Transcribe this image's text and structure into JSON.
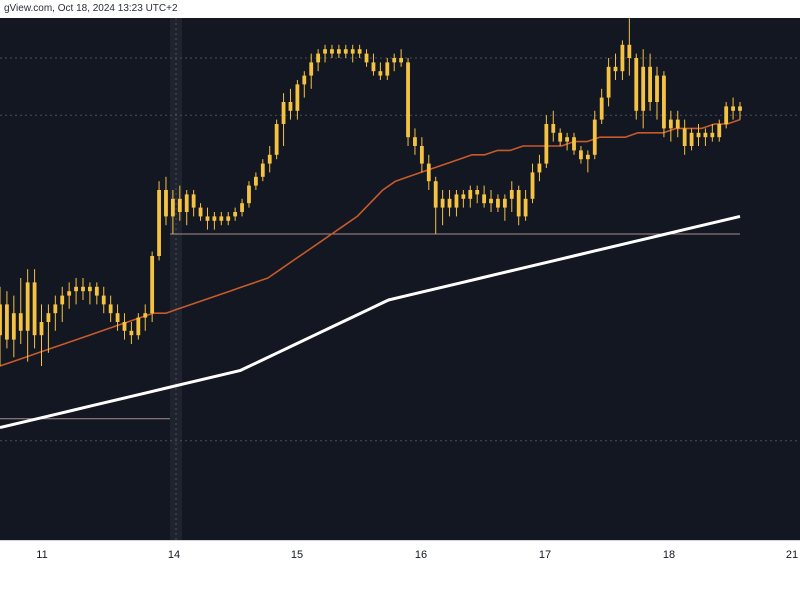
{
  "header": {
    "text": "gView.com, Oct 18, 2024 13:23 UTC+2"
  },
  "colors": {
    "background": "#131722",
    "candle": "#f5c242",
    "ma_fast": "#c75a2a",
    "ma_slow": "#ffffff",
    "level_line": "#a88d8d",
    "dotted_grid": "#4a4f5c",
    "cursor_band": "#2a2e39"
  },
  "chart_data": {
    "type": "candlestick",
    "x_tick_labels": [
      "11",
      "14",
      "15",
      "16",
      "17",
      "18",
      "21"
    ],
    "y_range": [
      0,
      100
    ],
    "candles": [
      {
        "o": 37,
        "h": 48,
        "l": 30,
        "c": 44
      },
      {
        "o": 44,
        "h": 47,
        "l": 34,
        "c": 36
      },
      {
        "o": 36,
        "h": 46,
        "l": 32,
        "c": 42
      },
      {
        "o": 42,
        "h": 50,
        "l": 35,
        "c": 38
      },
      {
        "o": 38,
        "h": 52,
        "l": 31,
        "c": 49
      },
      {
        "o": 49,
        "h": 52,
        "l": 34,
        "c": 37
      },
      {
        "o": 37,
        "h": 44,
        "l": 30,
        "c": 40
      },
      {
        "o": 40,
        "h": 44,
        "l": 33,
        "c": 42
      },
      {
        "o": 42,
        "h": 46,
        "l": 38,
        "c": 44
      },
      {
        "o": 44,
        "h": 48,
        "l": 40,
        "c": 46
      },
      {
        "o": 46,
        "h": 49,
        "l": 43,
        "c": 47
      },
      {
        "o": 47,
        "h": 50,
        "l": 44,
        "c": 48
      },
      {
        "o": 48,
        "h": 50,
        "l": 45,
        "c": 47
      },
      {
        "o": 47,
        "h": 49,
        "l": 44,
        "c": 48
      },
      {
        "o": 48,
        "h": 49,
        "l": 44,
        "c": 46
      },
      {
        "o": 46,
        "h": 48,
        "l": 42,
        "c": 44
      },
      {
        "o": 44,
        "h": 46,
        "l": 40,
        "c": 42
      },
      {
        "o": 42,
        "h": 44,
        "l": 38,
        "c": 40
      },
      {
        "o": 40,
        "h": 42,
        "l": 36,
        "c": 38
      },
      {
        "o": 38,
        "h": 40,
        "l": 35,
        "c": 37
      },
      {
        "o": 37,
        "h": 42,
        "l": 36,
        "c": 41
      },
      {
        "o": 41,
        "h": 44,
        "l": 38,
        "c": 42
      },
      {
        "o": 42,
        "h": 56,
        "l": 40,
        "c": 55
      },
      {
        "o": 55,
        "h": 72,
        "l": 54,
        "c": 70
      },
      {
        "o": 70,
        "h": 73,
        "l": 62,
        "c": 64
      },
      {
        "o": 64,
        "h": 70,
        "l": 60,
        "c": 68
      },
      {
        "o": 68,
        "h": 71,
        "l": 63,
        "c": 65
      },
      {
        "o": 65,
        "h": 70,
        "l": 62,
        "c": 69
      },
      {
        "o": 69,
        "h": 70,
        "l": 64,
        "c": 66
      },
      {
        "o": 66,
        "h": 67,
        "l": 63,
        "c": 64
      },
      {
        "o": 64,
        "h": 66,
        "l": 61,
        "c": 63
      },
      {
        "o": 63,
        "h": 65,
        "l": 61,
        "c": 64
      },
      {
        "o": 64,
        "h": 65,
        "l": 62,
        "c": 63
      },
      {
        "o": 63,
        "h": 65,
        "l": 62,
        "c": 64
      },
      {
        "o": 64,
        "h": 66,
        "l": 63,
        "c": 65
      },
      {
        "o": 65,
        "h": 68,
        "l": 64,
        "c": 67
      },
      {
        "o": 67,
        "h": 72,
        "l": 66,
        "c": 71
      },
      {
        "o": 71,
        "h": 74,
        "l": 70,
        "c": 73
      },
      {
        "o": 73,
        "h": 77,
        "l": 72,
        "c": 76
      },
      {
        "o": 76,
        "h": 80,
        "l": 74,
        "c": 78
      },
      {
        "o": 78,
        "h": 86,
        "l": 77,
        "c": 85
      },
      {
        "o": 85,
        "h": 92,
        "l": 80,
        "c": 90
      },
      {
        "o": 90,
        "h": 93,
        "l": 86,
        "c": 88
      },
      {
        "o": 88,
        "h": 95,
        "l": 86,
        "c": 94
      },
      {
        "o": 94,
        "h": 97,
        "l": 91,
        "c": 96
      },
      {
        "o": 96,
        "h": 101,
        "l": 93,
        "c": 99
      },
      {
        "o": 99,
        "h": 102,
        "l": 97,
        "c": 101
      },
      {
        "o": 101,
        "h": 103,
        "l": 99,
        "c": 102
      },
      {
        "o": 102,
        "h": 103,
        "l": 100,
        "c": 101
      },
      {
        "o": 101,
        "h": 103,
        "l": 100,
        "c": 102
      },
      {
        "o": 102,
        "h": 103,
        "l": 100,
        "c": 101
      },
      {
        "o": 101,
        "h": 103,
        "l": 99,
        "c": 102
      },
      {
        "o": 102,
        "h": 103,
        "l": 100,
        "c": 101
      },
      {
        "o": 101,
        "h": 102,
        "l": 98,
        "c": 99
      },
      {
        "o": 99,
        "h": 101,
        "l": 96,
        "c": 97
      },
      {
        "o": 97,
        "h": 99,
        "l": 95,
        "c": 96
      },
      {
        "o": 96,
        "h": 100,
        "l": 95,
        "c": 99
      },
      {
        "o": 99,
        "h": 101,
        "l": 97,
        "c": 100
      },
      {
        "o": 100,
        "h": 102,
        "l": 98,
        "c": 99
      },
      {
        "o": 99,
        "h": 100,
        "l": 80,
        "c": 82
      },
      {
        "o": 82,
        "h": 84,
        "l": 78,
        "c": 80
      },
      {
        "o": 80,
        "h": 82,
        "l": 74,
        "c": 76
      },
      {
        "o": 76,
        "h": 78,
        "l": 70,
        "c": 72
      },
      {
        "o": 72,
        "h": 73,
        "l": 60,
        "c": 66
      },
      {
        "o": 66,
        "h": 70,
        "l": 62,
        "c": 68
      },
      {
        "o": 68,
        "h": 70,
        "l": 64,
        "c": 66
      },
      {
        "o": 66,
        "h": 70,
        "l": 64,
        "c": 69
      },
      {
        "o": 69,
        "h": 70,
        "l": 66,
        "c": 68
      },
      {
        "o": 68,
        "h": 71,
        "l": 66,
        "c": 70
      },
      {
        "o": 70,
        "h": 71,
        "l": 67,
        "c": 69
      },
      {
        "o": 69,
        "h": 71,
        "l": 66,
        "c": 67
      },
      {
        "o": 67,
        "h": 70,
        "l": 65,
        "c": 68
      },
      {
        "o": 68,
        "h": 69,
        "l": 65,
        "c": 66
      },
      {
        "o": 66,
        "h": 69,
        "l": 63,
        "c": 68
      },
      {
        "o": 68,
        "h": 72,
        "l": 65,
        "c": 70
      },
      {
        "o": 70,
        "h": 71,
        "l": 62,
        "c": 64
      },
      {
        "o": 64,
        "h": 70,
        "l": 63,
        "c": 68
      },
      {
        "o": 68,
        "h": 76,
        "l": 67,
        "c": 74
      },
      {
        "o": 74,
        "h": 78,
        "l": 72,
        "c": 76
      },
      {
        "o": 76,
        "h": 87,
        "l": 75,
        "c": 85
      },
      {
        "o": 85,
        "h": 88,
        "l": 81,
        "c": 83
      },
      {
        "o": 83,
        "h": 84,
        "l": 80,
        "c": 81
      },
      {
        "o": 81,
        "h": 83,
        "l": 79,
        "c": 82
      },
      {
        "o": 82,
        "h": 83,
        "l": 78,
        "c": 79
      },
      {
        "o": 79,
        "h": 80,
        "l": 76,
        "c": 77
      },
      {
        "o": 77,
        "h": 79,
        "l": 74,
        "c": 78
      },
      {
        "o": 78,
        "h": 88,
        "l": 77,
        "c": 86
      },
      {
        "o": 86,
        "h": 93,
        "l": 85,
        "c": 91
      },
      {
        "o": 91,
        "h": 100,
        "l": 89,
        "c": 98
      },
      {
        "o": 98,
        "h": 101,
        "l": 95,
        "c": 97
      },
      {
        "o": 97,
        "h": 104,
        "l": 95,
        "c": 103
      },
      {
        "o": 103,
        "h": 109,
        "l": 96,
        "c": 100
      },
      {
        "o": 100,
        "h": 101,
        "l": 86,
        "c": 88
      },
      {
        "o": 88,
        "h": 102,
        "l": 84,
        "c": 98
      },
      {
        "o": 98,
        "h": 101,
        "l": 88,
        "c": 90
      },
      {
        "o": 90,
        "h": 98,
        "l": 86,
        "c": 96
      },
      {
        "o": 96,
        "h": 97,
        "l": 82,
        "c": 84
      },
      {
        "o": 84,
        "h": 88,
        "l": 81,
        "c": 86
      },
      {
        "o": 86,
        "h": 88,
        "l": 82,
        "c": 84
      },
      {
        "o": 84,
        "h": 86,
        "l": 78,
        "c": 80
      },
      {
        "o": 80,
        "h": 84,
        "l": 79,
        "c": 83
      },
      {
        "o": 83,
        "h": 85,
        "l": 80,
        "c": 82
      },
      {
        "o": 82,
        "h": 84,
        "l": 80,
        "c": 83
      },
      {
        "o": 83,
        "h": 85,
        "l": 81,
        "c": 82
      },
      {
        "o": 82,
        "h": 86,
        "l": 81,
        "c": 85
      },
      {
        "o": 85,
        "h": 90,
        "l": 84,
        "c": 89
      },
      {
        "o": 89,
        "h": 91,
        "l": 86,
        "c": 88
      },
      {
        "o": 88,
        "h": 90,
        "l": 86,
        "c": 89
      }
    ],
    "ma_fast": [
      30,
      31,
      32,
      33,
      34,
      35,
      36,
      37,
      38,
      39,
      40,
      41,
      42,
      42,
      43,
      44,
      45,
      46,
      47,
      48,
      49,
      50,
      52,
      54,
      56,
      58,
      60,
      62,
      64,
      67,
      70,
      72,
      73,
      74,
      75,
      76,
      77,
      78,
      78,
      79,
      79,
      80,
      80,
      80,
      80,
      81,
      81,
      82,
      82,
      82,
      83,
      83,
      83,
      84,
      84,
      84,
      85,
      85,
      86
    ],
    "ma_slow": [
      16,
      17,
      18,
      19,
      20,
      21,
      22,
      23,
      24,
      25,
      26,
      27,
      28,
      29,
      31,
      33,
      35,
      37,
      39,
      41,
      43,
      45,
      46,
      47,
      48,
      49,
      50,
      51,
      52,
      53,
      54,
      55,
      56,
      57,
      58,
      59,
      60,
      61,
      62,
      63,
      64
    ],
    "level_lines": [
      {
        "value": 100,
        "style": "dotted"
      },
      {
        "value": 87,
        "style": "dotted"
      },
      {
        "value": 60,
        "style": "solid"
      },
      {
        "value": 18,
        "style": "solid"
      },
      {
        "value": 13,
        "style": "dotted"
      }
    ]
  }
}
